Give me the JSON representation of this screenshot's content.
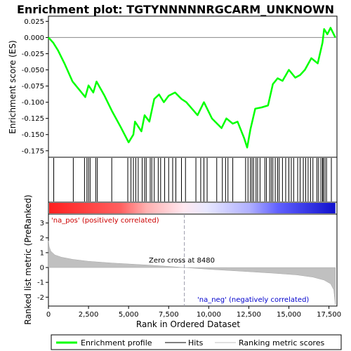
{
  "chart_data": {
    "type": "line",
    "title": "Enrichment plot: TGTYNNNNNRGCARM_UNKNOWN",
    "colors": {
      "profile": "#00ff00",
      "hits": "#000000",
      "metric": "#c0c0c0",
      "pos_label": "#cc0000",
      "neg_label": "#0000cc",
      "zero_line": "#9999aa"
    },
    "xlim": [
      0,
      18000
    ],
    "x_ticks": [
      0,
      2500,
      5000,
      7500,
      10000,
      12500,
      15000,
      17500
    ],
    "x_tick_labels": [
      "0",
      "2,500",
      "5,000",
      "7,500",
      "10,000",
      "12,500",
      "15,000",
      "17,500"
    ],
    "xlabel": "Rank in Ordered Dataset",
    "es_panel": {
      "ylabel": "Enrichment score (ES)",
      "ylim": [
        -0.185,
        0.033
      ],
      "y_ticks": [
        -0.175,
        -0.15,
        -0.125,
        -0.1,
        -0.075,
        -0.05,
        -0.025,
        0.0,
        0.025
      ],
      "y_tick_labels": [
        "-0.175",
        "-0.150",
        "-0.125",
        "-0.100",
        "-0.075",
        "-0.050",
        "-0.025",
        "0.000",
        "0.025"
      ],
      "profile": [
        [
          0,
          0.0
        ],
        [
          300,
          -0.008
        ],
        [
          600,
          -0.02
        ],
        [
          1000,
          -0.04
        ],
        [
          1500,
          -0.068
        ],
        [
          2300,
          -0.092
        ],
        [
          2500,
          -0.074
        ],
        [
          2800,
          -0.085
        ],
        [
          3000,
          -0.068
        ],
        [
          3500,
          -0.09
        ],
        [
          3950,
          -0.113
        ],
        [
          4500,
          -0.138
        ],
        [
          5000,
          -0.162
        ],
        [
          5300,
          -0.15
        ],
        [
          5400,
          -0.13
        ],
        [
          5800,
          -0.145
        ],
        [
          6000,
          -0.12
        ],
        [
          6300,
          -0.13
        ],
        [
          6600,
          -0.095
        ],
        [
          6900,
          -0.088
        ],
        [
          7200,
          -0.1
        ],
        [
          7500,
          -0.09
        ],
        [
          7900,
          -0.085
        ],
        [
          8300,
          -0.095
        ],
        [
          8600,
          -0.1
        ],
        [
          9300,
          -0.12
        ],
        [
          9700,
          -0.1
        ],
        [
          10200,
          -0.125
        ],
        [
          10800,
          -0.14
        ],
        [
          11100,
          -0.125
        ],
        [
          11500,
          -0.133
        ],
        [
          11800,
          -0.13
        ],
        [
          12200,
          -0.155
        ],
        [
          12400,
          -0.17
        ],
        [
          12600,
          -0.142
        ],
        [
          12900,
          -0.11
        ],
        [
          13300,
          -0.108
        ],
        [
          13700,
          -0.105
        ],
        [
          14000,
          -0.072
        ],
        [
          14300,
          -0.063
        ],
        [
          14600,
          -0.067
        ],
        [
          15000,
          -0.05
        ],
        [
          15400,
          -0.062
        ],
        [
          15700,
          -0.058
        ],
        [
          16000,
          -0.05
        ],
        [
          16400,
          -0.032
        ],
        [
          16800,
          -0.04
        ],
        [
          17100,
          -0.008
        ],
        [
          17200,
          0.013
        ],
        [
          17400,
          0.005
        ],
        [
          17600,
          0.015
        ],
        [
          17900,
          0.0
        ]
      ]
    },
    "hits": [
      330,
      1550,
      2250,
      2400,
      2500,
      2600,
      2950,
      3050,
      3950,
      4950,
      5150,
      5300,
      5450,
      5600,
      5850,
      6000,
      6100,
      6350,
      6450,
      6600,
      6850,
      7000,
      7250,
      7500,
      7750,
      7950,
      8300,
      8550,
      9200,
      9500,
      9700,
      9900,
      10500,
      10850,
      11050,
      11200,
      11500,
      12300,
      12450,
      12600,
      12700,
      12800,
      12950,
      13050,
      13200,
      13500,
      13600,
      13800,
      13900,
      14000,
      14150,
      14300,
      14400,
      14600,
      14800,
      15000,
      15150,
      15300,
      15550,
      15700,
      15900,
      16050,
      16200,
      16350,
      16500,
      16750,
      16850,
      17000,
      17100,
      17150,
      17250,
      17350,
      17650
    ],
    "metric_panel": {
      "ylabel": "Ranked list metric (PreRanked)",
      "ylim": [
        -2.6,
        3.6
      ],
      "y_ticks": [
        -2,
        -1,
        0,
        1,
        2,
        3
      ],
      "y_tick_labels": [
        "-2",
        "-1",
        "0",
        "1",
        "2",
        "3"
      ],
      "curve": [
        [
          0,
          1.8
        ],
        [
          50,
          1.4
        ],
        [
          150,
          1.1
        ],
        [
          400,
          0.85
        ],
        [
          800,
          0.7
        ],
        [
          1500,
          0.55
        ],
        [
          2500,
          0.42
        ],
        [
          4000,
          0.3
        ],
        [
          6000,
          0.18
        ],
        [
          7500,
          0.08
        ],
        [
          8480,
          0.0
        ],
        [
          10000,
          -0.12
        ],
        [
          12000,
          -0.25
        ],
        [
          14000,
          -0.38
        ],
        [
          15500,
          -0.5
        ],
        [
          16500,
          -0.65
        ],
        [
          17200,
          -0.85
        ],
        [
          17600,
          -1.1
        ],
        [
          17800,
          -1.5
        ],
        [
          17900,
          -2.5
        ]
      ],
      "zero_cross_text": "Zero cross at 8480",
      "zero_cross_x": 8480,
      "pos_label": "'na_pos' (positively correlated)",
      "neg_label": "'na_neg' (negatively correlated)"
    },
    "legend": {
      "placement": "bottom",
      "items": [
        {
          "label": "Enrichment profile",
          "style": "thick-green-line"
        },
        {
          "label": "Hits",
          "style": "black-line"
        },
        {
          "label": "Ranking metric scores",
          "style": "gray-line"
        }
      ]
    }
  }
}
